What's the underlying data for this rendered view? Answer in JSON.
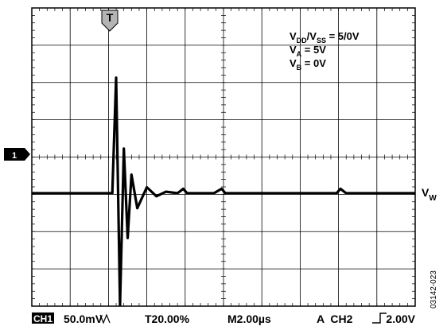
{
  "chart_data": {
    "type": "line",
    "title": "",
    "xlabel": "",
    "ylabel": "",
    "grid": true,
    "grid_divisions": {
      "x": 10,
      "y": 8
    },
    "x_unit": "µs",
    "x_range": [
      0,
      20
    ],
    "y_unit": "mV",
    "y_range": [
      -200,
      200
    ],
    "trigger_marker": "T",
    "channel_marker": "1",
    "conditions": [
      {
        "main": "V",
        "sub": "DD",
        "mid": "/V",
        "sub2": "SS",
        "rest": " = 5/0V"
      },
      {
        "main": "V",
        "sub": "A",
        "mid": "",
        "sub2": "",
        "rest": " = 5V"
      },
      {
        "main": "V",
        "sub": "B",
        "mid": "",
        "sub2": "",
        "rest": " = 0V"
      }
    ],
    "trace_label": {
      "main": "V",
      "sub": "W"
    },
    "series": [
      {
        "x": [
          0,
          3.5,
          4.2,
          4.4,
          4.6,
          4.8,
          5.0,
          5.2,
          5.5,
          6.0,
          6.5,
          7.0,
          7.6,
          7.9,
          8.1,
          9.5,
          9.9,
          10.1,
          10.5,
          15.9,
          16.1,
          16.4,
          16.6,
          20.0
        ],
        "y": [
          0,
          0,
          0,
          155,
          -150,
          60,
          -60,
          25,
          -20,
          8,
          -4,
          2,
          0,
          6,
          0,
          0,
          6,
          0,
          0,
          0,
          6,
          0,
          0,
          0
        ]
      }
    ],
    "scope_settings": {
      "channel": "CH1",
      "scale": "50.0mV",
      "trigger_position": "T20.00%",
      "timebase": "M2.00µs",
      "trigger": "A  CH2",
      "trigger_level": "2.00V"
    },
    "figure_id": "03142-023"
  }
}
